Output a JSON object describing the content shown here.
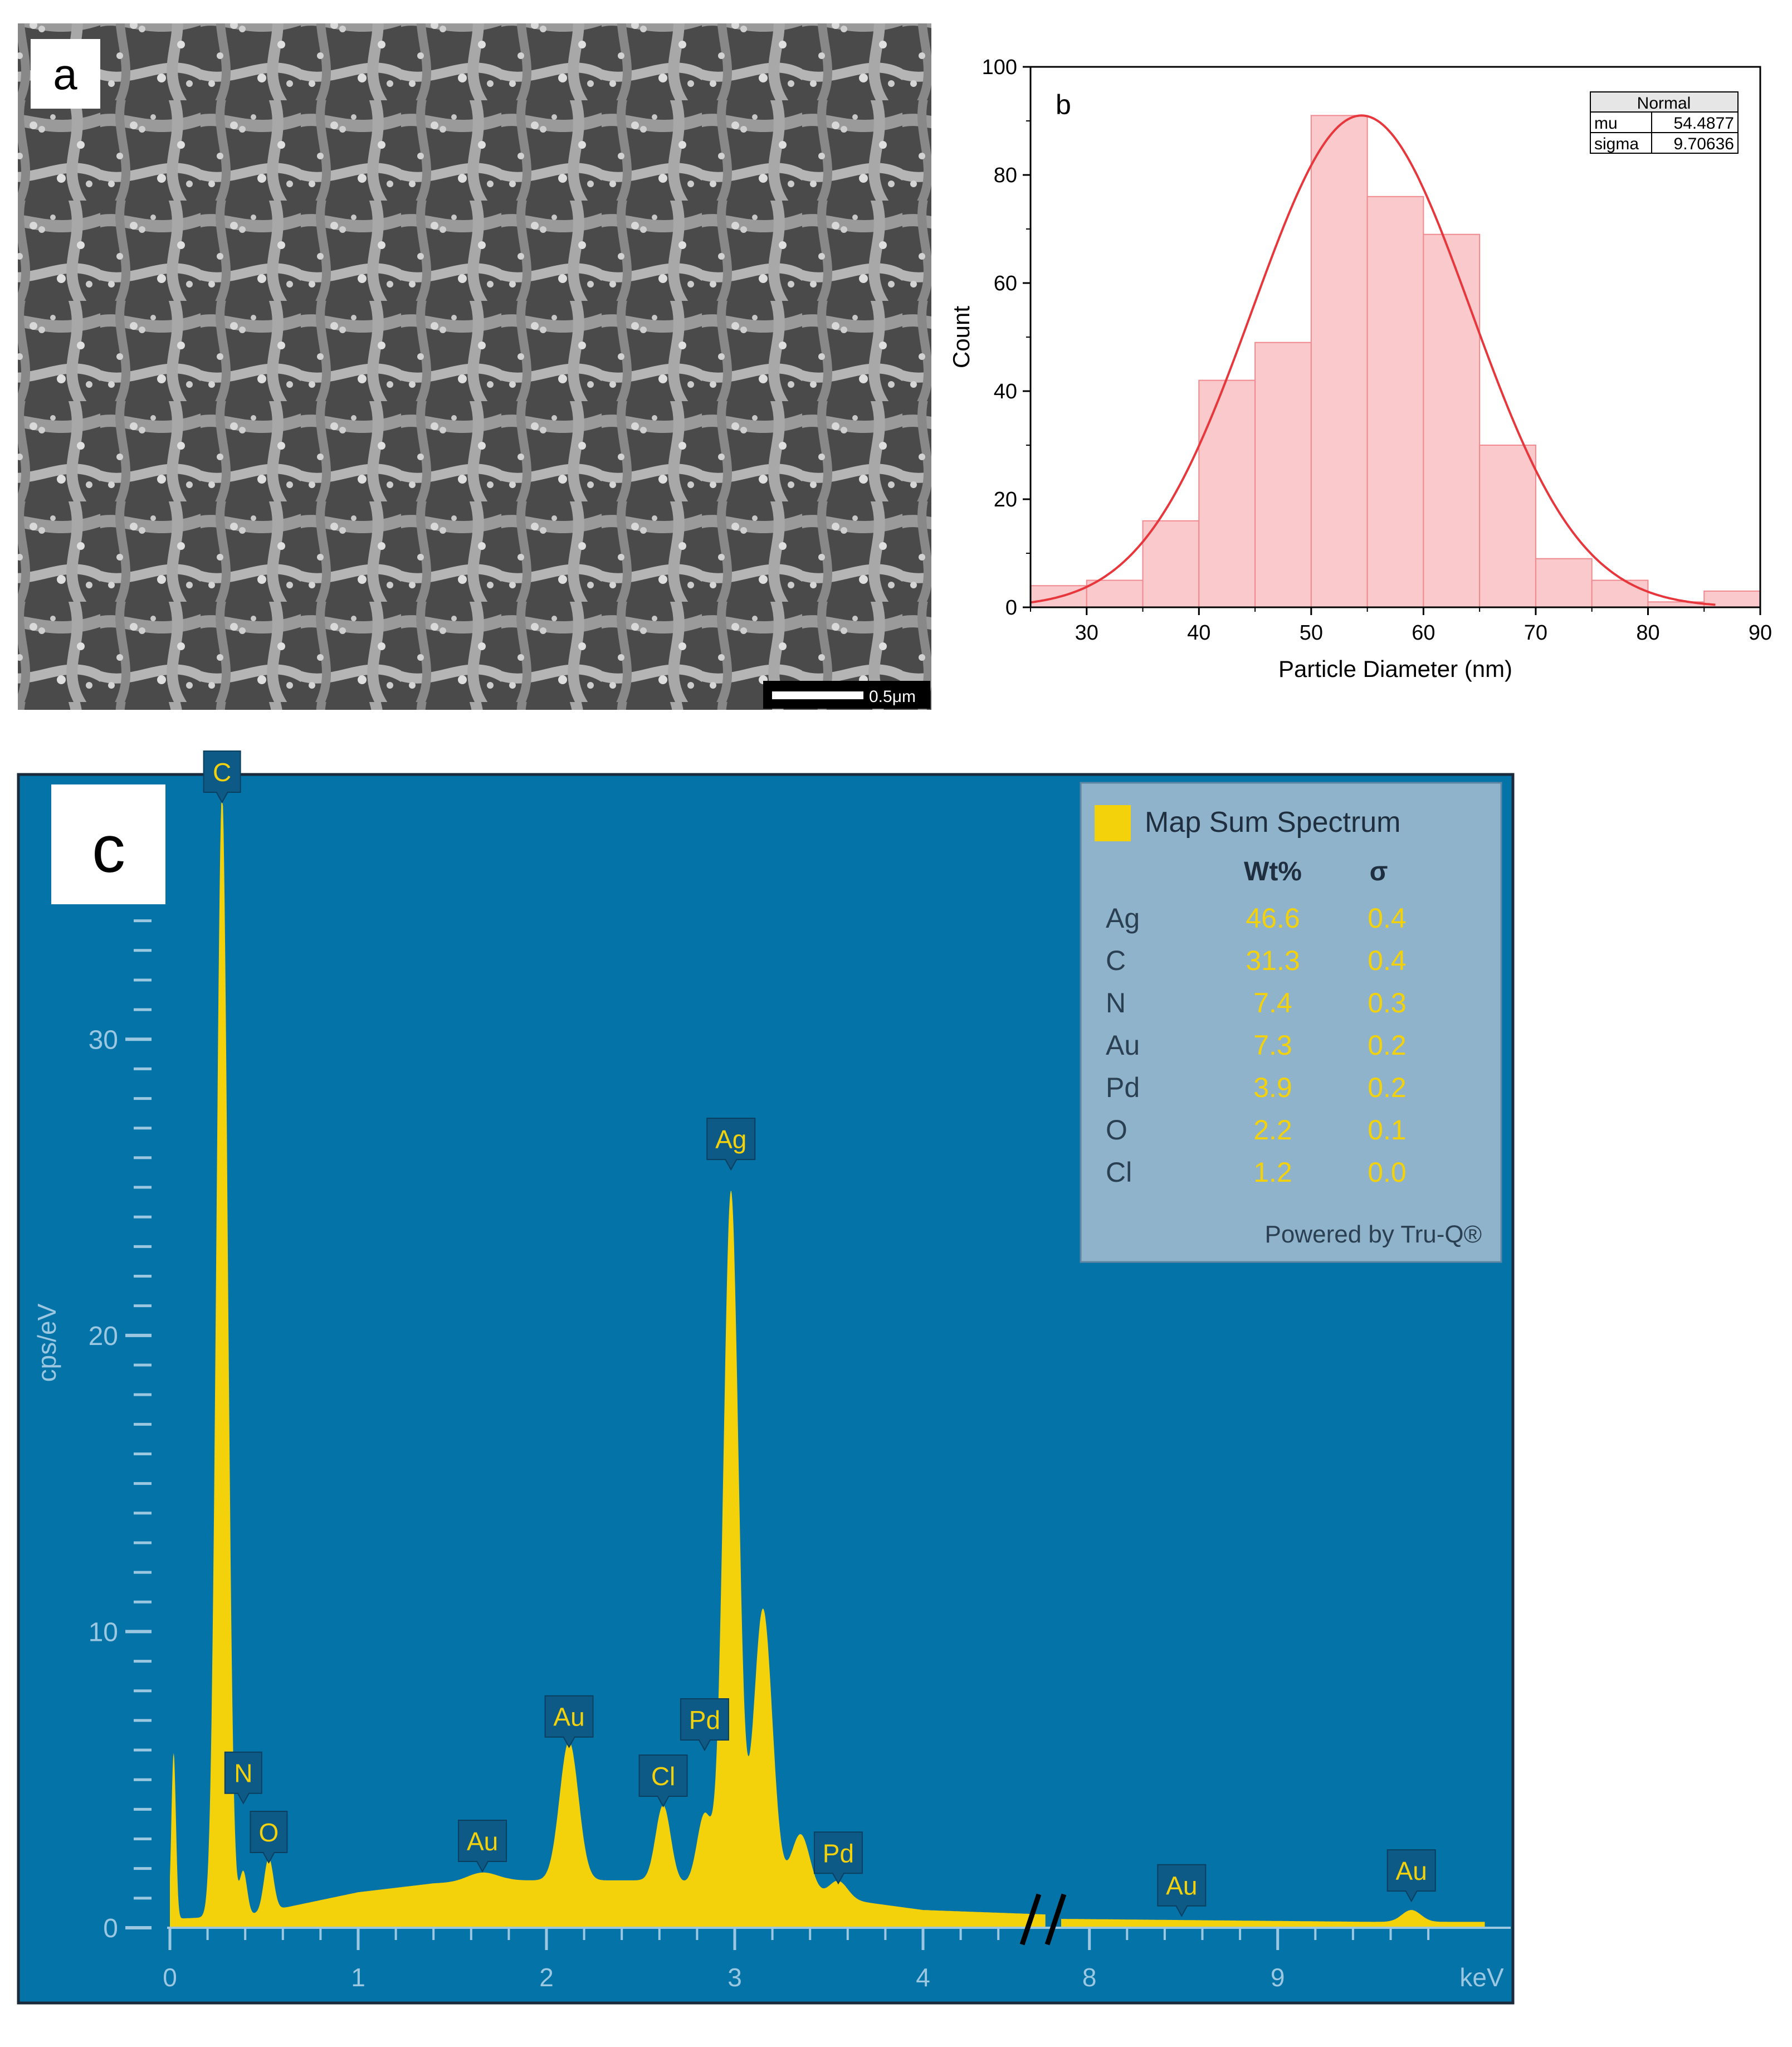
{
  "panels": {
    "a": {
      "label": "a",
      "scalebar_label": "0.5μm"
    },
    "b": {
      "label": "b"
    },
    "c": {
      "label": "c"
    }
  },
  "chart_data": [
    {
      "panel": "b",
      "type": "bar",
      "xlabel": "Particle Diameter (nm)",
      "ylabel": "Count",
      "xlim": [
        25,
        90
      ],
      "ylim": [
        0,
        100
      ],
      "xticks": [
        30,
        40,
        50,
        60,
        70,
        80,
        90
      ],
      "yticks": [
        0,
        20,
        40,
        60,
        80,
        100
      ],
      "bins": [
        {
          "x0": 25,
          "x1": 30,
          "count": 4
        },
        {
          "x0": 30,
          "x1": 35,
          "count": 5
        },
        {
          "x0": 35,
          "x1": 40,
          "count": 16
        },
        {
          "x0": 40,
          "x1": 45,
          "count": 42
        },
        {
          "x0": 45,
          "x1": 50,
          "count": 49
        },
        {
          "x0": 50,
          "x1": 55,
          "count": 91
        },
        {
          "x0": 55,
          "x1": 60,
          "count": 76
        },
        {
          "x0": 60,
          "x1": 65,
          "count": 69
        },
        {
          "x0": 65,
          "x1": 70,
          "count": 30
        },
        {
          "x0": 70,
          "x1": 75,
          "count": 9
        },
        {
          "x0": 75,
          "x1": 80,
          "count": 5
        },
        {
          "x0": 80,
          "x1": 85,
          "count": 1
        },
        {
          "x0": 85,
          "x1": 90,
          "count": 3
        }
      ],
      "fit": {
        "type": "normal",
        "mu": 54.4877,
        "sigma": 9.70636,
        "peak": 91,
        "x_range": [
          25,
          86
        ]
      },
      "stats_table": {
        "title": "Normal",
        "rows": [
          {
            "label": "mu",
            "value": "54.4877"
          },
          {
            "label": "sigma",
            "value": "9.70636"
          }
        ]
      },
      "colors": {
        "bar_fill": "#f9c9cb",
        "bar_edge": "#f08a8f",
        "fit_line": "#e8373c"
      }
    },
    {
      "panel": "c",
      "type": "area",
      "ylabel": "cps/eV",
      "x_unit": "keV",
      "ylim": [
        0,
        38
      ],
      "axis_break_after_keV": 4.65,
      "x_segments": [
        {
          "from": 0,
          "to": 4.65
        },
        {
          "from": 7.85,
          "to": 10.1
        }
      ],
      "xticks": [
        0,
        1,
        2,
        3,
        4,
        8,
        9
      ],
      "yticks": [
        0,
        10,
        20,
        30
      ],
      "baseline": [
        [
          0,
          0.3
        ],
        [
          0.4,
          0.4
        ],
        [
          0.7,
          0.8
        ],
        [
          1.0,
          1.2
        ],
        [
          1.4,
          1.5
        ],
        [
          1.8,
          1.6
        ],
        [
          2.5,
          1.6
        ],
        [
          3.3,
          1.2
        ],
        [
          4.0,
          0.6
        ],
        [
          4.65,
          0.45
        ],
        [
          7.85,
          0.3
        ],
        [
          9.5,
          0.2
        ],
        [
          10.1,
          0.2
        ]
      ],
      "peaks": [
        {
          "keV": 0.02,
          "height": 5.6,
          "width": 0.012
        },
        {
          "keV": 0.277,
          "height": 38,
          "width": 0.03
        },
        {
          "keV": 0.39,
          "height": 1.5,
          "width": 0.02
        },
        {
          "keV": 0.525,
          "height": 1.8,
          "width": 0.025
        },
        {
          "keV": 1.66,
          "height": 0.3,
          "width": 0.08
        },
        {
          "keV": 2.12,
          "height": 4.7,
          "width": 0.05
        },
        {
          "keV": 2.62,
          "height": 2.6,
          "width": 0.04
        },
        {
          "keV": 2.84,
          "height": 2.4,
          "width": 0.04
        },
        {
          "keV": 2.98,
          "height": 23.5,
          "width": 0.04
        },
        {
          "keV": 3.15,
          "height": 9.5,
          "width": 0.05
        },
        {
          "keV": 3.35,
          "height": 2.0,
          "width": 0.05
        },
        {
          "keV": 3.55,
          "height": 0.6,
          "width": 0.05
        },
        {
          "keV": 9.71,
          "height": 0.4,
          "width": 0.05
        }
      ],
      "peak_labels": [
        {
          "text": "C",
          "keV": 0.277,
          "tip": 38
        },
        {
          "text": "N",
          "keV": 0.39,
          "tip": 4.2
        },
        {
          "text": "O",
          "keV": 0.525,
          "tip": 2.2
        },
        {
          "text": "Au",
          "keV": 1.66,
          "tip": 1.9
        },
        {
          "text": "Au",
          "keV": 2.12,
          "tip": 6.1
        },
        {
          "text": "Cl",
          "keV": 2.62,
          "tip": 4.1
        },
        {
          "text": "Pd",
          "keV": 2.84,
          "tip": 6.0
        },
        {
          "text": "Ag",
          "keV": 2.98,
          "tip": 25.6
        },
        {
          "text": "Pd",
          "keV": 3.55,
          "tip": 1.5
        },
        {
          "text": "Au",
          "keV": 8.49,
          "tip": 0.4
        },
        {
          "text": "Au",
          "keV": 9.71,
          "tip": 0.9
        }
      ],
      "legend": {
        "title": "Map Sum Spectrum",
        "col_wt": "Wt%",
        "col_sigma": "σ",
        "rows": [
          {
            "element": "Ag",
            "wt": "46.6",
            "sigma": "0.4"
          },
          {
            "element": "C",
            "wt": "31.3",
            "sigma": "0.4"
          },
          {
            "element": "N",
            "wt": "7.4",
            "sigma": "0.3"
          },
          {
            "element": "Au",
            "wt": "7.3",
            "sigma": "0.2"
          },
          {
            "element": "Pd",
            "wt": "3.9",
            "sigma": "0.2"
          },
          {
            "element": "O",
            "wt": "2.2",
            "sigma": "0.1"
          },
          {
            "element": "Cl",
            "wt": "1.2",
            "sigma": "0.0"
          }
        ],
        "footer": "Powered by Tru-Q®"
      },
      "colors": {
        "background": "#0473a8",
        "spectrum": "#f4d20b",
        "legend_bg": "#8eb3cb",
        "label_box": "#0d5a86",
        "axis_text": "#9cc7e0"
      }
    }
  ]
}
